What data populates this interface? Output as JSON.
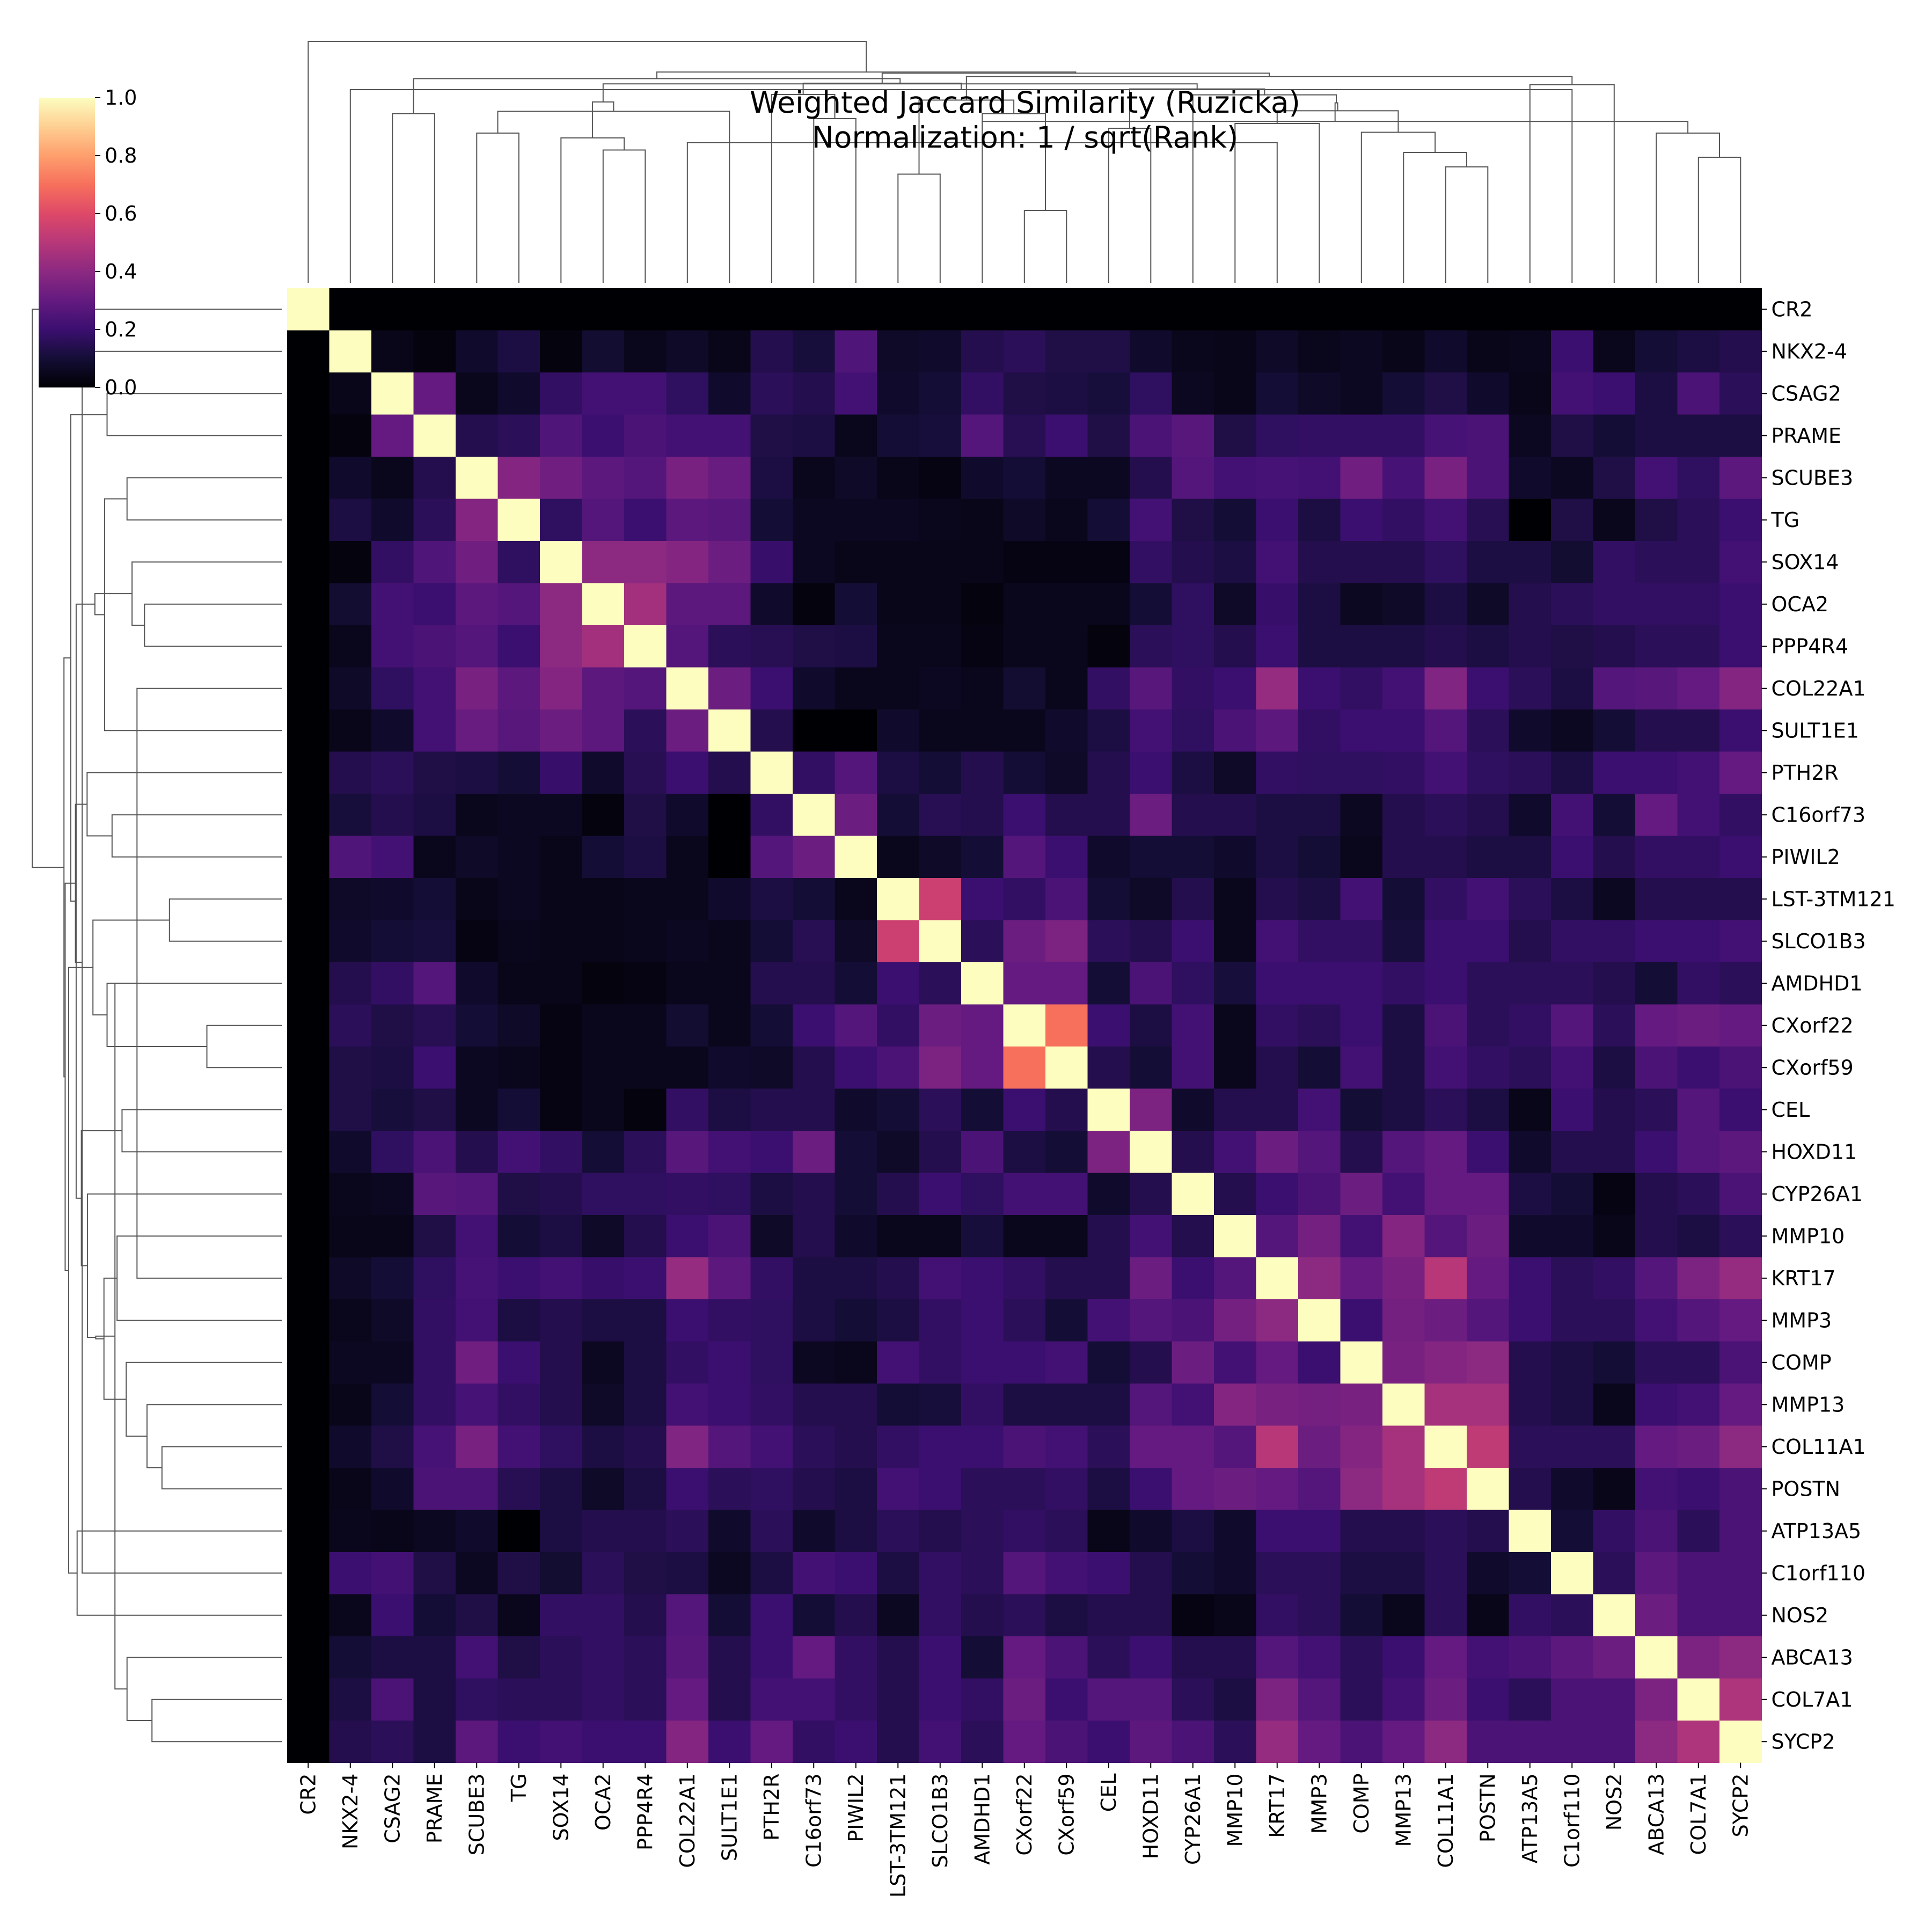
{
  "chart_data": {
    "type": "heatmap",
    "title": "Weighted Jaccard Similarity (Ruzicka)",
    "subtitle": "Normalization: 1 / sqrt(Rank)",
    "labels": [
      "CR2",
      "NKX2-4",
      "CSAG2",
      "PRAME",
      "SCUBE3",
      "TG",
      "SOX14",
      "OCA2",
      "PPP4R4",
      "COL22A1",
      "SULT1E1",
      "PTH2R",
      "C16orf73",
      "PIWIL2",
      "LST-3TM121",
      "SLCO1B3",
      "AMDHD1",
      "CXorf22",
      "CXorf59",
      "CEL",
      "HOXD11",
      "CYP26A1",
      "MMP10",
      "KRT17",
      "MMP3",
      "COMP",
      "MMP13",
      "COL11A1",
      "POSTN",
      "ATP13A5",
      "C1orf110",
      "NOS2",
      "ABCA13",
      "COL7A1",
      "SYCP2"
    ],
    "colormap": "magma",
    "vmin": 0.0,
    "vmax": 1.0,
    "colorbar_ticks": [
      "0.0",
      "0.2",
      "0.4",
      "0.6",
      "0.8",
      "1.0"
    ],
    "dendrograms": [
      "top",
      "left"
    ],
    "matrix": [
      [
        1.0,
        0.0,
        0.0,
        0.0,
        0.0,
        0.0,
        0.0,
        0.0,
        0.0,
        0.0,
        0.0,
        0.0,
        0.0,
        0.0,
        0.0,
        0.0,
        0.0,
        0.0,
        0.0,
        0.0,
        0.0,
        0.0,
        0.0,
        0.0,
        0.0,
        0.0,
        0.0,
        0.0,
        0.0,
        0.0,
        0.0,
        0.0,
        0.0,
        0.0,
        0.0
      ],
      [
        0.0,
        1.0,
        0.04,
        0.02,
        0.08,
        0.12,
        0.02,
        0.09,
        0.05,
        0.07,
        0.04,
        0.14,
        0.11,
        0.25,
        0.07,
        0.08,
        0.14,
        0.16,
        0.13,
        0.13,
        0.08,
        0.05,
        0.04,
        0.07,
        0.05,
        0.06,
        0.04,
        0.08,
        0.04,
        0.05,
        0.2,
        0.05,
        0.1,
        0.12,
        0.14
      ],
      [
        0.0,
        0.04,
        1.0,
        0.3,
        0.05,
        0.08,
        0.18,
        0.22,
        0.22,
        0.17,
        0.08,
        0.16,
        0.14,
        0.22,
        0.08,
        0.1,
        0.18,
        0.13,
        0.12,
        0.11,
        0.17,
        0.06,
        0.04,
        0.1,
        0.07,
        0.06,
        0.1,
        0.13,
        0.08,
        0.04,
        0.22,
        0.2,
        0.12,
        0.24,
        0.16
      ],
      [
        0.0,
        0.02,
        0.3,
        1.0,
        0.14,
        0.16,
        0.25,
        0.2,
        0.24,
        0.22,
        0.22,
        0.13,
        0.12,
        0.05,
        0.1,
        0.11,
        0.26,
        0.15,
        0.2,
        0.13,
        0.24,
        0.27,
        0.13,
        0.17,
        0.18,
        0.18,
        0.18,
        0.23,
        0.24,
        0.06,
        0.13,
        0.1,
        0.12,
        0.12,
        0.12
      ],
      [
        0.0,
        0.08,
        0.05,
        0.14,
        1.0,
        0.38,
        0.33,
        0.28,
        0.26,
        0.35,
        0.31,
        0.12,
        0.05,
        0.07,
        0.04,
        0.03,
        0.08,
        0.1,
        0.06,
        0.06,
        0.14,
        0.26,
        0.22,
        0.23,
        0.22,
        0.33,
        0.23,
        0.35,
        0.24,
        0.08,
        0.06,
        0.13,
        0.22,
        0.17,
        0.28
      ],
      [
        0.0,
        0.12,
        0.08,
        0.16,
        0.38,
        1.0,
        0.17,
        0.26,
        0.2,
        0.28,
        0.27,
        0.1,
        0.06,
        0.06,
        0.06,
        0.05,
        0.04,
        0.07,
        0.05,
        0.1,
        0.22,
        0.13,
        0.1,
        0.2,
        0.12,
        0.2,
        0.18,
        0.22,
        0.15,
        0.0,
        0.13,
        0.05,
        0.13,
        0.16,
        0.2
      ],
      [
        0.0,
        0.02,
        0.18,
        0.25,
        0.33,
        0.17,
        1.0,
        0.4,
        0.4,
        0.38,
        0.32,
        0.19,
        0.06,
        0.04,
        0.04,
        0.04,
        0.04,
        0.03,
        0.03,
        0.03,
        0.18,
        0.14,
        0.12,
        0.22,
        0.14,
        0.14,
        0.14,
        0.17,
        0.12,
        0.12,
        0.09,
        0.18,
        0.16,
        0.16,
        0.22
      ],
      [
        0.0,
        0.09,
        0.22,
        0.2,
        0.28,
        0.26,
        0.4,
        1.0,
        0.45,
        0.28,
        0.28,
        0.08,
        0.02,
        0.1,
        0.04,
        0.04,
        0.02,
        0.05,
        0.05,
        0.05,
        0.1,
        0.17,
        0.07,
        0.19,
        0.12,
        0.06,
        0.07,
        0.12,
        0.07,
        0.14,
        0.16,
        0.18,
        0.18,
        0.18,
        0.2
      ],
      [
        0.0,
        0.05,
        0.22,
        0.24,
        0.26,
        0.2,
        0.4,
        0.45,
        1.0,
        0.26,
        0.16,
        0.15,
        0.13,
        0.12,
        0.05,
        0.05,
        0.03,
        0.05,
        0.05,
        0.02,
        0.16,
        0.17,
        0.14,
        0.2,
        0.12,
        0.12,
        0.12,
        0.14,
        0.12,
        0.14,
        0.13,
        0.14,
        0.16,
        0.16,
        0.2
      ],
      [
        0.0,
        0.07,
        0.17,
        0.22,
        0.35,
        0.28,
        0.38,
        0.28,
        0.26,
        1.0,
        0.32,
        0.2,
        0.08,
        0.05,
        0.05,
        0.06,
        0.05,
        0.09,
        0.05,
        0.18,
        0.27,
        0.18,
        0.2,
        0.42,
        0.2,
        0.18,
        0.22,
        0.37,
        0.2,
        0.16,
        0.12,
        0.26,
        0.27,
        0.3,
        0.38
      ],
      [
        0.0,
        0.04,
        0.08,
        0.22,
        0.31,
        0.27,
        0.32,
        0.28,
        0.16,
        0.32,
        1.0,
        0.14,
        0.0,
        0.0,
        0.08,
        0.05,
        0.05,
        0.05,
        0.08,
        0.12,
        0.22,
        0.17,
        0.24,
        0.28,
        0.18,
        0.2,
        0.2,
        0.26,
        0.16,
        0.08,
        0.06,
        0.1,
        0.14,
        0.14,
        0.2
      ],
      [
        0.0,
        0.14,
        0.16,
        0.13,
        0.12,
        0.1,
        0.19,
        0.08,
        0.15,
        0.2,
        0.14,
        1.0,
        0.18,
        0.26,
        0.12,
        0.1,
        0.14,
        0.1,
        0.07,
        0.14,
        0.2,
        0.12,
        0.07,
        0.18,
        0.17,
        0.17,
        0.18,
        0.22,
        0.17,
        0.16,
        0.12,
        0.2,
        0.2,
        0.22,
        0.3
      ],
      [
        0.0,
        0.11,
        0.14,
        0.12,
        0.05,
        0.06,
        0.06,
        0.02,
        0.13,
        0.08,
        0.0,
        0.18,
        1.0,
        0.32,
        0.1,
        0.15,
        0.14,
        0.2,
        0.14,
        0.14,
        0.32,
        0.14,
        0.14,
        0.12,
        0.12,
        0.06,
        0.14,
        0.16,
        0.14,
        0.08,
        0.22,
        0.1,
        0.3,
        0.22,
        0.18
      ],
      [
        0.0,
        0.25,
        0.22,
        0.05,
        0.07,
        0.06,
        0.04,
        0.1,
        0.12,
        0.05,
        0.0,
        0.26,
        0.32,
        1.0,
        0.05,
        0.07,
        0.1,
        0.26,
        0.2,
        0.08,
        0.1,
        0.1,
        0.08,
        0.12,
        0.1,
        0.05,
        0.14,
        0.14,
        0.12,
        0.12,
        0.2,
        0.14,
        0.18,
        0.18,
        0.2
      ],
      [
        0.0,
        0.07,
        0.08,
        0.1,
        0.04,
        0.06,
        0.04,
        0.04,
        0.05,
        0.05,
        0.08,
        0.12,
        0.1,
        0.05,
        1.0,
        0.55,
        0.2,
        0.18,
        0.24,
        0.1,
        0.07,
        0.14,
        0.05,
        0.14,
        0.12,
        0.22,
        0.1,
        0.18,
        0.22,
        0.16,
        0.12,
        0.06,
        0.14,
        0.14,
        0.14
      ],
      [
        0.0,
        0.08,
        0.1,
        0.11,
        0.03,
        0.05,
        0.04,
        0.04,
        0.05,
        0.06,
        0.05,
        0.1,
        0.15,
        0.07,
        0.55,
        1.0,
        0.16,
        0.32,
        0.36,
        0.16,
        0.14,
        0.2,
        0.05,
        0.22,
        0.18,
        0.18,
        0.11,
        0.2,
        0.2,
        0.14,
        0.18,
        0.18,
        0.2,
        0.2,
        0.22
      ],
      [
        0.0,
        0.14,
        0.18,
        0.26,
        0.08,
        0.04,
        0.04,
        0.02,
        0.03,
        0.05,
        0.05,
        0.14,
        0.14,
        0.1,
        0.2,
        0.16,
        1.0,
        0.3,
        0.3,
        0.1,
        0.24,
        0.17,
        0.11,
        0.2,
        0.2,
        0.2,
        0.18,
        0.2,
        0.16,
        0.16,
        0.16,
        0.14,
        0.1,
        0.18,
        0.16
      ],
      [
        0.0,
        0.16,
        0.13,
        0.15,
        0.1,
        0.07,
        0.03,
        0.05,
        0.05,
        0.09,
        0.05,
        0.1,
        0.2,
        0.26,
        0.18,
        0.32,
        0.3,
        1.0,
        0.7,
        0.2,
        0.12,
        0.22,
        0.05,
        0.18,
        0.16,
        0.2,
        0.12,
        0.24,
        0.16,
        0.18,
        0.26,
        0.16,
        0.3,
        0.32,
        0.3
      ],
      [
        0.0,
        0.13,
        0.12,
        0.2,
        0.06,
        0.05,
        0.03,
        0.05,
        0.05,
        0.05,
        0.08,
        0.07,
        0.14,
        0.2,
        0.24,
        0.36,
        0.3,
        0.7,
        1.0,
        0.14,
        0.1,
        0.22,
        0.05,
        0.14,
        0.1,
        0.22,
        0.12,
        0.22,
        0.18,
        0.16,
        0.22,
        0.12,
        0.24,
        0.2,
        0.24
      ],
      [
        0.0,
        0.13,
        0.11,
        0.13,
        0.06,
        0.1,
        0.03,
        0.05,
        0.02,
        0.18,
        0.12,
        0.14,
        0.14,
        0.08,
        0.1,
        0.16,
        0.1,
        0.2,
        0.14,
        1.0,
        0.36,
        0.08,
        0.14,
        0.14,
        0.22,
        0.1,
        0.12,
        0.16,
        0.12,
        0.04,
        0.2,
        0.14,
        0.16,
        0.26,
        0.2
      ],
      [
        0.0,
        0.08,
        0.17,
        0.24,
        0.14,
        0.22,
        0.18,
        0.1,
        0.16,
        0.27,
        0.22,
        0.2,
        0.32,
        0.1,
        0.07,
        0.14,
        0.24,
        0.12,
        0.1,
        0.36,
        1.0,
        0.14,
        0.22,
        0.32,
        0.26,
        0.14,
        0.26,
        0.3,
        0.2,
        0.08,
        0.14,
        0.14,
        0.2,
        0.26,
        0.28
      ],
      [
        0.0,
        0.05,
        0.06,
        0.27,
        0.26,
        0.13,
        0.14,
        0.17,
        0.17,
        0.18,
        0.17,
        0.12,
        0.14,
        0.1,
        0.14,
        0.2,
        0.17,
        0.22,
        0.22,
        0.08,
        0.14,
        1.0,
        0.14,
        0.2,
        0.24,
        0.32,
        0.22,
        0.3,
        0.3,
        0.12,
        0.1,
        0.03,
        0.14,
        0.16,
        0.24
      ],
      [
        0.0,
        0.04,
        0.04,
        0.13,
        0.22,
        0.1,
        0.12,
        0.07,
        0.14,
        0.2,
        0.24,
        0.07,
        0.14,
        0.08,
        0.05,
        0.05,
        0.11,
        0.05,
        0.05,
        0.14,
        0.22,
        0.14,
        1.0,
        0.26,
        0.34,
        0.22,
        0.38,
        0.26,
        0.32,
        0.08,
        0.08,
        0.04,
        0.14,
        0.12,
        0.16
      ],
      [
        0.0,
        0.07,
        0.1,
        0.17,
        0.23,
        0.2,
        0.22,
        0.19,
        0.2,
        0.42,
        0.28,
        0.18,
        0.12,
        0.12,
        0.14,
        0.22,
        0.2,
        0.18,
        0.14,
        0.14,
        0.32,
        0.2,
        0.26,
        1.0,
        0.4,
        0.3,
        0.35,
        0.5,
        0.3,
        0.2,
        0.16,
        0.18,
        0.26,
        0.36,
        0.42
      ],
      [
        0.0,
        0.05,
        0.07,
        0.18,
        0.22,
        0.12,
        0.14,
        0.12,
        0.12,
        0.2,
        0.18,
        0.17,
        0.12,
        0.1,
        0.12,
        0.18,
        0.2,
        0.16,
        0.1,
        0.22,
        0.26,
        0.24,
        0.34,
        0.4,
        1.0,
        0.2,
        0.34,
        0.32,
        0.26,
        0.2,
        0.16,
        0.16,
        0.22,
        0.26,
        0.3
      ],
      [
        0.0,
        0.06,
        0.06,
        0.18,
        0.33,
        0.2,
        0.14,
        0.06,
        0.12,
        0.18,
        0.2,
        0.17,
        0.06,
        0.05,
        0.22,
        0.18,
        0.2,
        0.2,
        0.22,
        0.1,
        0.14,
        0.32,
        0.22,
        0.3,
        0.2,
        1.0,
        0.35,
        0.38,
        0.4,
        0.14,
        0.12,
        0.1,
        0.16,
        0.16,
        0.24
      ],
      [
        0.0,
        0.04,
        0.1,
        0.18,
        0.23,
        0.18,
        0.14,
        0.07,
        0.12,
        0.22,
        0.2,
        0.18,
        0.14,
        0.14,
        0.1,
        0.11,
        0.18,
        0.12,
        0.12,
        0.12,
        0.26,
        0.22,
        0.38,
        0.35,
        0.34,
        0.35,
        1.0,
        0.46,
        0.46,
        0.14,
        0.12,
        0.05,
        0.2,
        0.22,
        0.3
      ],
      [
        0.0,
        0.08,
        0.13,
        0.23,
        0.35,
        0.22,
        0.17,
        0.12,
        0.14,
        0.37,
        0.26,
        0.22,
        0.16,
        0.14,
        0.18,
        0.2,
        0.2,
        0.24,
        0.22,
        0.16,
        0.3,
        0.3,
        0.26,
        0.5,
        0.32,
        0.38,
        0.46,
        1.0,
        0.52,
        0.16,
        0.16,
        0.16,
        0.3,
        0.32,
        0.4
      ],
      [
        0.0,
        0.04,
        0.08,
        0.24,
        0.24,
        0.15,
        0.12,
        0.07,
        0.12,
        0.2,
        0.16,
        0.17,
        0.14,
        0.12,
        0.22,
        0.2,
        0.16,
        0.16,
        0.18,
        0.12,
        0.2,
        0.3,
        0.32,
        0.3,
        0.26,
        0.4,
        0.46,
        0.52,
        1.0,
        0.14,
        0.08,
        0.04,
        0.22,
        0.2,
        0.24
      ],
      [
        0.0,
        0.05,
        0.04,
        0.06,
        0.08,
        0.0,
        0.12,
        0.14,
        0.14,
        0.16,
        0.08,
        0.16,
        0.08,
        0.12,
        0.16,
        0.14,
        0.16,
        0.18,
        0.16,
        0.04,
        0.08,
        0.12,
        0.08,
        0.2,
        0.2,
        0.14,
        0.14,
        0.16,
        0.14,
        1.0,
        0.1,
        0.18,
        0.24,
        0.16,
        0.24
      ],
      [
        0.0,
        0.2,
        0.22,
        0.13,
        0.06,
        0.13,
        0.09,
        0.16,
        0.13,
        0.12,
        0.06,
        0.12,
        0.22,
        0.2,
        0.12,
        0.18,
        0.16,
        0.26,
        0.22,
        0.2,
        0.14,
        0.1,
        0.08,
        0.16,
        0.16,
        0.12,
        0.12,
        0.16,
        0.08,
        0.1,
        1.0,
        0.16,
        0.28,
        0.24,
        0.24
      ],
      [
        0.0,
        0.05,
        0.2,
        0.1,
        0.13,
        0.05,
        0.18,
        0.18,
        0.14,
        0.26,
        0.1,
        0.2,
        0.1,
        0.14,
        0.06,
        0.18,
        0.14,
        0.16,
        0.12,
        0.14,
        0.14,
        0.03,
        0.04,
        0.18,
        0.16,
        0.1,
        0.05,
        0.16,
        0.04,
        0.18,
        0.16,
        1.0,
        0.32,
        0.24,
        0.24
      ],
      [
        0.0,
        0.1,
        0.12,
        0.12,
        0.22,
        0.13,
        0.16,
        0.18,
        0.16,
        0.27,
        0.14,
        0.2,
        0.3,
        0.18,
        0.14,
        0.2,
        0.1,
        0.3,
        0.24,
        0.16,
        0.2,
        0.14,
        0.14,
        0.26,
        0.22,
        0.16,
        0.2,
        0.3,
        0.22,
        0.24,
        0.28,
        0.32,
        1.0,
        0.36,
        0.4
      ],
      [
        0.0,
        0.12,
        0.24,
        0.12,
        0.17,
        0.16,
        0.16,
        0.18,
        0.16,
        0.3,
        0.14,
        0.22,
        0.22,
        0.18,
        0.14,
        0.2,
        0.18,
        0.32,
        0.2,
        0.26,
        0.26,
        0.16,
        0.12,
        0.36,
        0.26,
        0.16,
        0.22,
        0.32,
        0.2,
        0.16,
        0.24,
        0.24,
        0.36,
        1.0,
        0.48
      ],
      [
        0.0,
        0.14,
        0.16,
        0.12,
        0.28,
        0.2,
        0.22,
        0.2,
        0.2,
        0.38,
        0.2,
        0.3,
        0.18,
        0.2,
        0.14,
        0.22,
        0.16,
        0.3,
        0.24,
        0.2,
        0.28,
        0.24,
        0.16,
        0.42,
        0.3,
        0.24,
        0.3,
        0.4,
        0.24,
        0.24,
        0.24,
        0.24,
        0.4,
        0.48,
        1.0
      ]
    ]
  }
}
